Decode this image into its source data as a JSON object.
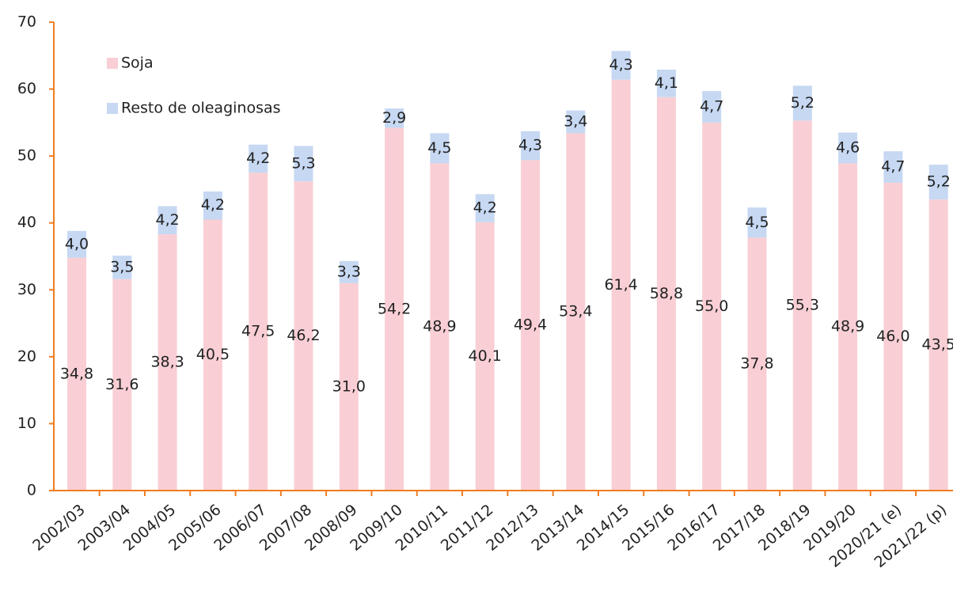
{
  "chart_data": {
    "type": "stacked_bar",
    "categories": [
      "2002/03",
      "2003/04",
      "2004/05",
      "2005/06",
      "2006/07",
      "2007/08",
      "2008/09",
      "2009/10",
      "2010/11",
      "2011/12",
      "2012/13",
      "2013/14",
      "2014/15",
      "2015/16",
      "2016/17",
      "2017/18",
      "2018/19",
      "2019/20",
      "2020/21 (e)",
      "2021/22 (p)"
    ],
    "series": [
      {
        "name": "Soja",
        "color": "#f9cfd5",
        "values": [
          34.8,
          31.6,
          38.3,
          40.5,
          47.5,
          46.2,
          31.0,
          54.2,
          48.9,
          40.1,
          49.4,
          53.4,
          61.4,
          58.8,
          55.0,
          37.8,
          55.3,
          48.9,
          46.0,
          43.5
        ],
        "value_labels": [
          "34,8",
          "31,6",
          "38,3",
          "40,5",
          "47,5",
          "46,2",
          "31,0",
          "54,2",
          "48,9",
          "40,1",
          "49,4",
          "53,4",
          "61,4",
          "58,8",
          "55,0",
          "37,8",
          "55,3",
          "48,9",
          "46,0",
          "43,5"
        ]
      },
      {
        "name": "Resto de oleaginosas",
        "color": "#c6d8f2",
        "values": [
          4.0,
          3.5,
          4.2,
          4.2,
          4.2,
          5.3,
          3.3,
          2.9,
          4.5,
          4.2,
          4.3,
          3.4,
          4.3,
          4.1,
          4.7,
          4.5,
          5.2,
          4.6,
          4.7,
          5.2
        ],
        "value_labels": [
          "4,0",
          "3,5",
          "4,2",
          "4,2",
          "4,2",
          "5,3",
          "3,3",
          "2,9",
          "4,5",
          "4,2",
          "4,3",
          "3,4",
          "4,3",
          "4,1",
          "4,7",
          "4,5",
          "5,2",
          "4,6",
          "4,7",
          "5,2"
        ]
      }
    ],
    "ylim": [
      0,
      70
    ],
    "yticks": [
      0,
      10,
      20,
      30,
      40,
      50,
      60,
      70
    ],
    "axis_color": "#f07c1e",
    "legend": "upper left"
  }
}
